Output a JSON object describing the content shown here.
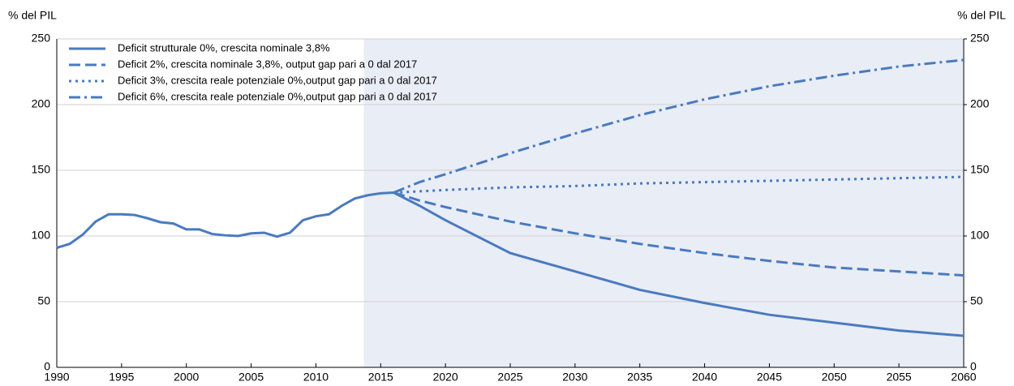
{
  "chart_data": {
    "type": "line",
    "y_label": "% del PIL",
    "y2_label": "% del PIL",
    "x": [
      1990,
      1991,
      1992,
      1993,
      1994,
      1995,
      1996,
      1997,
      1998,
      1999,
      2000,
      2001,
      2002,
      2003,
      2004,
      2005,
      2006,
      2007,
      2008,
      2009,
      2010,
      2011,
      2012,
      2013,
      2014,
      2015,
      2016,
      2018,
      2020,
      2025,
      2030,
      2035,
      2040,
      2045,
      2050,
      2055,
      2060
    ],
    "series": [
      {
        "name": "Deficit strutturale 0%, crescita nominale 3,8%",
        "color": "#4a7abf",
        "dash": "solid",
        "values": [
          91,
          94,
          101,
          111,
          116.5,
          116.5,
          116,
          113.5,
          110.5,
          109.5,
          105,
          105,
          101.5,
          100.5,
          100,
          102,
          102.5,
          99.5,
          102.5,
          112,
          115,
          116.5,
          123,
          128.5,
          131,
          132.5,
          133,
          123,
          112,
          87,
          73,
          59,
          49,
          40,
          34,
          28,
          24
        ]
      },
      {
        "name": "Deficit 2%, crescita nominale 3,8%, output gap pari a 0 dal 2017",
        "color": "#4a7abf",
        "dash": "dashed",
        "values": [
          null,
          null,
          null,
          null,
          null,
          null,
          null,
          null,
          null,
          null,
          null,
          null,
          null,
          null,
          null,
          null,
          null,
          null,
          null,
          null,
          null,
          null,
          null,
          null,
          null,
          null,
          133,
          127,
          122,
          111,
          102,
          94,
          87,
          81,
          76,
          73,
          70
        ]
      },
      {
        "name": "Deficit 3%, crescita reale potenziale 0%,output gap pari a 0 dal 2017",
        "color": "#4a7abf",
        "dash": "dotted",
        "values": [
          null,
          null,
          null,
          null,
          null,
          null,
          null,
          null,
          null,
          null,
          null,
          null,
          null,
          null,
          null,
          null,
          null,
          null,
          null,
          null,
          null,
          null,
          null,
          null,
          null,
          null,
          133,
          134,
          135,
          137,
          138,
          140,
          141,
          142,
          143,
          144,
          145
        ]
      },
      {
        "name": "Deficit 6%, crescita reale potenziale 0%,output gap pari a 0 dal 2017",
        "color": "#4a7abf",
        "dash": "dashdot",
        "values": [
          null,
          null,
          null,
          null,
          null,
          null,
          null,
          null,
          null,
          null,
          null,
          null,
          null,
          null,
          null,
          null,
          null,
          null,
          null,
          null,
          null,
          null,
          null,
          null,
          null,
          null,
          133,
          141,
          147,
          163,
          178,
          192,
          204,
          214,
          222,
          229,
          234
        ]
      }
    ],
    "xlim": [
      1990,
      2060
    ],
    "xticks": [
      1990,
      1995,
      2000,
      2005,
      2010,
      2015,
      2020,
      2025,
      2030,
      2035,
      2040,
      2045,
      2050,
      2055,
      2060
    ],
    "ylim": [
      0,
      250
    ],
    "yticks": [
      0,
      50,
      100,
      150,
      200,
      250
    ],
    "y2lim": [
      0,
      250
    ],
    "y2ticks": [
      0,
      50,
      100,
      150,
      200,
      250
    ],
    "shaded_x_range": [
      2013.7,
      2060
    ],
    "shade_color": "#e9edf6",
    "grid": true,
    "legend": "upper left"
  }
}
